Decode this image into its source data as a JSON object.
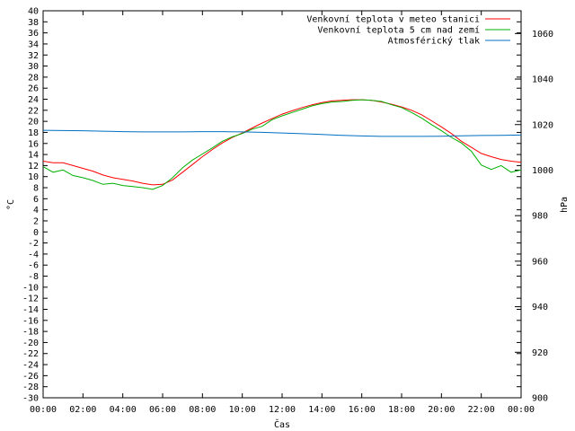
{
  "chart_data": {
    "type": "line",
    "xlabel": "Čas",
    "ylabel": "°C",
    "y2label": "hPa",
    "x_ticks": [
      "00:00",
      "02:00",
      "04:00",
      "06:00",
      "08:00",
      "10:00",
      "12:00",
      "14:00",
      "16:00",
      "18:00",
      "20:00",
      "22:00",
      "00:00"
    ],
    "xlim": [
      0,
      24
    ],
    "ylim": [
      -30,
      40
    ],
    "y_ticks": [
      40,
      38,
      36,
      34,
      32,
      30,
      28,
      26,
      24,
      22,
      20,
      18,
      16,
      14,
      12,
      10,
      8,
      6,
      4,
      2,
      0,
      -2,
      -4,
      -6,
      -8,
      -10,
      -12,
      -14,
      -16,
      -18,
      -20,
      -22,
      -24,
      -26,
      -28,
      -30
    ],
    "y2lim": [
      900,
      1070
    ],
    "y2_ticks": [
      1060,
      1040,
      1020,
      1000,
      980,
      960,
      940,
      920,
      900
    ],
    "grid": false,
    "legend_position": "top-right",
    "series": [
      {
        "name": "Venkovní teplota v meteo stanici",
        "color": "#ff0000",
        "axis": "left",
        "x": [
          0,
          0.5,
          1,
          1.5,
          2,
          2.5,
          3,
          3.5,
          4,
          4.5,
          5,
          5.5,
          6,
          6.5,
          7,
          7.5,
          8,
          8.5,
          9,
          9.5,
          10,
          10.5,
          11,
          11.5,
          12,
          12.5,
          13,
          13.5,
          14,
          14.5,
          15,
          15.5,
          16,
          16.5,
          17,
          17.5,
          18,
          18.5,
          19,
          19.5,
          20,
          20.5,
          21,
          21.5,
          22,
          22.5,
          23,
          23.5,
          24
        ],
        "values": [
          12.8,
          12.5,
          12.5,
          12.0,
          11.5,
          11.0,
          10.3,
          9.8,
          9.5,
          9.2,
          8.8,
          8.5,
          8.6,
          9.4,
          10.8,
          12.2,
          13.6,
          14.9,
          16.1,
          17.1,
          17.9,
          18.8,
          19.7,
          20.5,
          21.3,
          21.9,
          22.5,
          23.0,
          23.4,
          23.7,
          23.8,
          23.9,
          23.9,
          23.8,
          23.5,
          23.1,
          22.6,
          22.0,
          21.2,
          20.1,
          19.0,
          17.8,
          16.4,
          15.3,
          14.2,
          13.6,
          13.1,
          12.8,
          12.6
        ]
      },
      {
        "name": "Venkovní teplota 5 cm nad zemí",
        "color": "#00b000",
        "axis": "left",
        "x": [
          0,
          0.5,
          1,
          1.5,
          2,
          2.5,
          3,
          3.5,
          4,
          4.5,
          5,
          5.5,
          6,
          6.5,
          7,
          7.5,
          8,
          8.5,
          9,
          9.5,
          10,
          10.5,
          11,
          11.5,
          12,
          12.5,
          13,
          13.5,
          14,
          14.5,
          15,
          15.5,
          16,
          16.5,
          17,
          17.5,
          18,
          18.5,
          19,
          19.5,
          20,
          20.5,
          21,
          21.5,
          22,
          22.5,
          23,
          23.5,
          24
        ],
        "values": [
          11.8,
          10.8,
          11.2,
          10.2,
          9.8,
          9.3,
          8.6,
          8.8,
          8.4,
          8.2,
          8.0,
          7.7,
          8.4,
          9.8,
          11.6,
          13.0,
          14.1,
          15.2,
          16.4,
          17.2,
          17.8,
          18.6,
          19.1,
          20.3,
          21.0,
          21.6,
          22.2,
          22.8,
          23.2,
          23.5,
          23.6,
          23.8,
          23.9,
          23.8,
          23.6,
          23.0,
          22.5,
          21.6,
          20.6,
          19.4,
          18.3,
          17.1,
          16.1,
          14.6,
          12.1,
          11.3,
          12.0,
          10.8,
          11.2
        ]
      },
      {
        "name": "Atmosférický tlak",
        "color": "#0070c0",
        "axis": "right",
        "x": [
          0,
          1,
          2,
          3,
          4,
          5,
          6,
          7,
          8,
          9,
          10,
          11,
          12,
          13,
          14,
          15,
          16,
          17,
          18,
          19,
          20,
          21,
          22,
          23,
          24
        ],
        "values": [
          1017.5,
          1017.4,
          1017.3,
          1017.1,
          1016.9,
          1016.8,
          1016.8,
          1016.8,
          1016.9,
          1016.9,
          1016.8,
          1016.6,
          1016.3,
          1016.0,
          1015.7,
          1015.3,
          1015.0,
          1014.8,
          1014.8,
          1014.8,
          1014.9,
          1015.1,
          1015.2,
          1015.3,
          1015.4
        ]
      }
    ]
  }
}
